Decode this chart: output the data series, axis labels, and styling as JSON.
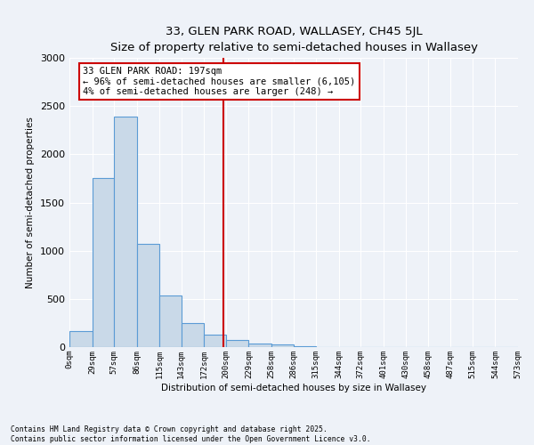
{
  "title_line1": "33, GLEN PARK ROAD, WALLASEY, CH45 5JL",
  "title_line2": "Size of property relative to semi-detached houses in Wallasey",
  "xlabel": "Distribution of semi-detached houses by size in Wallasey",
  "ylabel": "Number of semi-detached properties",
  "bar_color": "#c9d9e8",
  "bar_edge_color": "#5b9bd5",
  "background_color": "#eef2f8",
  "grid_color": "#ffffff",
  "vline_x": 197,
  "vline_color": "#cc0000",
  "annotation_title": "33 GLEN PARK ROAD: 197sqm",
  "annotation_line1": "← 96% of semi-detached houses are smaller (6,105)",
  "annotation_line2": "4% of semi-detached houses are larger (248) →",
  "annotation_box_color": "#cc0000",
  "bin_edges": [
    0,
    29,
    57,
    86,
    115,
    143,
    172,
    200,
    229,
    258,
    286,
    315,
    344,
    372,
    401,
    430,
    458,
    487,
    515,
    544,
    573
  ],
  "bin_counts": [
    170,
    1750,
    2390,
    1070,
    540,
    250,
    130,
    70,
    40,
    30,
    10,
    0,
    0,
    0,
    0,
    0,
    0,
    0,
    0,
    0
  ],
  "tick_labels": [
    "0sqm",
    "29sqm",
    "57sqm",
    "86sqm",
    "115sqm",
    "143sqm",
    "172sqm",
    "200sqm",
    "229sqm",
    "258sqm",
    "286sqm",
    "315sqm",
    "344sqm",
    "372sqm",
    "401sqm",
    "430sqm",
    "458sqm",
    "487sqm",
    "515sqm",
    "544sqm",
    "573sqm"
  ],
  "ylim": [
    0,
    3000
  ],
  "footnote1": "Contains HM Land Registry data © Crown copyright and database right 2025.",
  "footnote2": "Contains public sector information licensed under the Open Government Licence v3.0."
}
